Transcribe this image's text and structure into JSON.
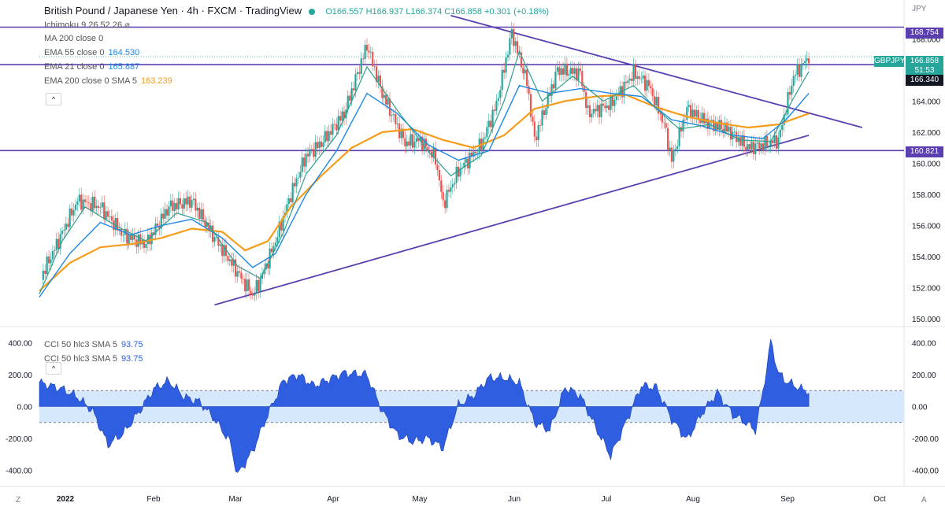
{
  "header": {
    "title": "British Pound / Japanese Yen · 4h · FXCM · TradingView",
    "ohlc": "O166.557 H166.937 L166.374 C166.858 +0.301 (+0.18%)"
  },
  "indicators": [
    {
      "label": "Ichimoku 9 26 52 26",
      "value": ""
    },
    {
      "label": "MA 200 close 0",
      "value": ""
    },
    {
      "label": "EMA 55 close 0",
      "value": "164.530"
    },
    {
      "label": "EMA 21 close 0",
      "value": "165.887"
    },
    {
      "label": "EMA 200 close 0 SMA 5",
      "value": "163.239"
    }
  ],
  "cci_legend": [
    {
      "label": "CCI 50 hlc3 SMA 5",
      "value": "93.75"
    },
    {
      "label": "CCI 50 hlc3 SMA 5",
      "value": "93.75"
    }
  ],
  "axis": {
    "currency": "JPY",
    "corner_left": "Z",
    "corner_right": "A"
  },
  "price_tags": {
    "top_level": "168.754",
    "symbol": "GBPJPY",
    "last_price": "166.858",
    "countdown": "51:53",
    "level_mid": "166.340",
    "level_low": "160.821"
  },
  "colors": {
    "ema21": "#2e9e8f",
    "ema55": "#1e88e5",
    "ema200": "#f59c1a",
    "trendline": "#5b3fb0",
    "cci_fill": "#2f5fe0",
    "cci_band": "#d6e8fb",
    "up": "#26a69a",
    "down": "#ef5350"
  },
  "chart_data": [
    {
      "type": "candlestick",
      "symbol": "GBPJPY",
      "ylim": [
        149.5,
        170.5
      ],
      "yticks": [
        "150.000",
        "152.000",
        "154.000",
        "156.000",
        "158.000",
        "160.000",
        "162.000",
        "164.000",
        "166.000",
        "168.000"
      ],
      "xticks": [
        "2022",
        "Feb",
        "Mar",
        "Apr",
        "May",
        "Jun",
        "Jul",
        "Aug",
        "Sep",
        "Oct"
      ],
      "close_path": [
        [
          0,
          152.5
        ],
        [
          4,
          154.5
        ],
        [
          10,
          157.6
        ],
        [
          16,
          157.2
        ],
        [
          22,
          155.4
        ],
        [
          28,
          154.8
        ],
        [
          34,
          157.2
        ],
        [
          40,
          157.6
        ],
        [
          46,
          155.2
        ],
        [
          52,
          153.0
        ],
        [
          56,
          151.5
        ],
        [
          58,
          152.5
        ],
        [
          62,
          155.0
        ],
        [
          66,
          158.0
        ],
        [
          70,
          160.5
        ],
        [
          74,
          161.3
        ],
        [
          80,
          163.2
        ],
        [
          86,
          167.6
        ],
        [
          90,
          164.5
        ],
        [
          96,
          161.3
        ],
        [
          100,
          161.5
        ],
        [
          104,
          160.3
        ],
        [
          106,
          157.4
        ],
        [
          110,
          159.5
        ],
        [
          116,
          161.2
        ],
        [
          120,
          163.8
        ],
        [
          124,
          168.4
        ],
        [
          128,
          165.2
        ],
        [
          130,
          161.5
        ],
        [
          136,
          166.0
        ],
        [
          142,
          165.8
        ],
        [
          144,
          163.2
        ],
        [
          150,
          163.8
        ],
        [
          156,
          165.8
        ],
        [
          160,
          165.0
        ],
        [
          164,
          162.5
        ],
        [
          166,
          160.2
        ],
        [
          170,
          163.5
        ],
        [
          176,
          162.5
        ],
        [
          180,
          162.3
        ],
        [
          186,
          161.0
        ],
        [
          190,
          161.2
        ],
        [
          194,
          161.5
        ],
        [
          198,
          165.6
        ],
        [
          202,
          166.86
        ]
      ],
      "ema21": [
        [
          0,
          151.6
        ],
        [
          6,
          155.0
        ],
        [
          12,
          157.2
        ],
        [
          20,
          156.0
        ],
        [
          28,
          155.0
        ],
        [
          36,
          156.8
        ],
        [
          44,
          156.2
        ],
        [
          52,
          153.4
        ],
        [
          58,
          152.6
        ],
        [
          64,
          155.5
        ],
        [
          70,
          159.3
        ],
        [
          78,
          161.8
        ],
        [
          86,
          166.2
        ],
        [
          94,
          163.4
        ],
        [
          102,
          160.8
        ],
        [
          108,
          159.2
        ],
        [
          116,
          160.5
        ],
        [
          122,
          164.0
        ],
        [
          126,
          167.2
        ],
        [
          132,
          164.0
        ],
        [
          140,
          165.6
        ],
        [
          148,
          164.0
        ],
        [
          156,
          165.0
        ],
        [
          162,
          163.5
        ],
        [
          168,
          162.2
        ],
        [
          176,
          162.5
        ],
        [
          184,
          161.5
        ],
        [
          192,
          161.4
        ],
        [
          198,
          164.2
        ],
        [
          202,
          165.9
        ]
      ],
      "ema55": [
        [
          0,
          151.4
        ],
        [
          8,
          154.2
        ],
        [
          16,
          156.2
        ],
        [
          24,
          155.4
        ],
        [
          32,
          156.0
        ],
        [
          40,
          156.4
        ],
        [
          48,
          155.2
        ],
        [
          56,
          153.3
        ],
        [
          62,
          154.2
        ],
        [
          70,
          158.0
        ],
        [
          78,
          160.8
        ],
        [
          86,
          164.5
        ],
        [
          94,
          163.2
        ],
        [
          102,
          161.2
        ],
        [
          110,
          160.2
        ],
        [
          118,
          160.8
        ],
        [
          126,
          165.0
        ],
        [
          134,
          164.5
        ],
        [
          142,
          164.8
        ],
        [
          150,
          164.5
        ],
        [
          158,
          164.3
        ],
        [
          166,
          162.8
        ],
        [
          174,
          162.4
        ],
        [
          182,
          161.8
        ],
        [
          190,
          161.6
        ],
        [
          196,
          162.8
        ],
        [
          202,
          164.5
        ]
      ],
      "ema200": [
        [
          0,
          151.8
        ],
        [
          8,
          153.6
        ],
        [
          16,
          154.6
        ],
        [
          24,
          154.8
        ],
        [
          32,
          155.2
        ],
        [
          40,
          155.8
        ],
        [
          48,
          155.6
        ],
        [
          54,
          154.4
        ],
        [
          60,
          155.0
        ],
        [
          66,
          157.2
        ],
        [
          74,
          159.2
        ],
        [
          82,
          161.0
        ],
        [
          90,
          162.0
        ],
        [
          98,
          162.2
        ],
        [
          106,
          161.5
        ],
        [
          114,
          161.0
        ],
        [
          122,
          161.8
        ],
        [
          130,
          163.5
        ],
        [
          138,
          164.0
        ],
        [
          146,
          164.3
        ],
        [
          154,
          164.4
        ],
        [
          162,
          163.6
        ],
        [
          170,
          163.0
        ],
        [
          178,
          162.6
        ],
        [
          186,
          162.3
        ],
        [
          194,
          162.5
        ],
        [
          202,
          163.2
        ]
      ],
      "levels": [
        168.754,
        166.34,
        160.821
      ],
      "trendline_upper": [
        [
          108,
          169.5
        ],
        [
          216,
          162.3
        ]
      ],
      "trendline_lower": [
        [
          46,
          150.9
        ],
        [
          202,
          161.8
        ]
      ]
    },
    {
      "type": "area",
      "name": "CCI 50 hlc3 SMA 5",
      "ylim": [
        -500,
        500
      ],
      "yticks": [
        "400.00",
        "200.00",
        "0.00",
        "-200.00",
        "-400.00"
      ],
      "band": [
        -100,
        100
      ],
      "path": [
        [
          0,
          150
        ],
        [
          6,
          110
        ],
        [
          10,
          60
        ],
        [
          14,
          -30
        ],
        [
          18,
          -240
        ],
        [
          22,
          -170
        ],
        [
          26,
          -40
        ],
        [
          30,
          110
        ],
        [
          34,
          160
        ],
        [
          38,
          60
        ],
        [
          42,
          30
        ],
        [
          46,
          -80
        ],
        [
          50,
          -220
        ],
        [
          52,
          -430
        ],
        [
          56,
          -280
        ],
        [
          60,
          -50
        ],
        [
          64,
          160
        ],
        [
          68,
          200
        ],
        [
          72,
          130
        ],
        [
          76,
          170
        ],
        [
          80,
          210
        ],
        [
          86,
          200
        ],
        [
          90,
          -30
        ],
        [
          94,
          -180
        ],
        [
          98,
          -220
        ],
        [
          102,
          -200
        ],
        [
          106,
          -260
        ],
        [
          110,
          10
        ],
        [
          114,
          70
        ],
        [
          118,
          180
        ],
        [
          122,
          180
        ],
        [
          126,
          150
        ],
        [
          130,
          -100
        ],
        [
          134,
          -150
        ],
        [
          138,
          120
        ],
        [
          142,
          70
        ],
        [
          146,
          -130
        ],
        [
          150,
          -310
        ],
        [
          154,
          -100
        ],
        [
          158,
          130
        ],
        [
          162,
          120
        ],
        [
          166,
          -80
        ],
        [
          170,
          -210
        ],
        [
          174,
          -40
        ],
        [
          178,
          90
        ],
        [
          182,
          -50
        ],
        [
          186,
          -110
        ],
        [
          188,
          -150
        ],
        [
          190,
          100
        ],
        [
          192,
          410
        ],
        [
          194,
          210
        ],
        [
          196,
          160
        ],
        [
          200,
          110
        ],
        [
          202,
          94
        ]
      ]
    }
  ]
}
